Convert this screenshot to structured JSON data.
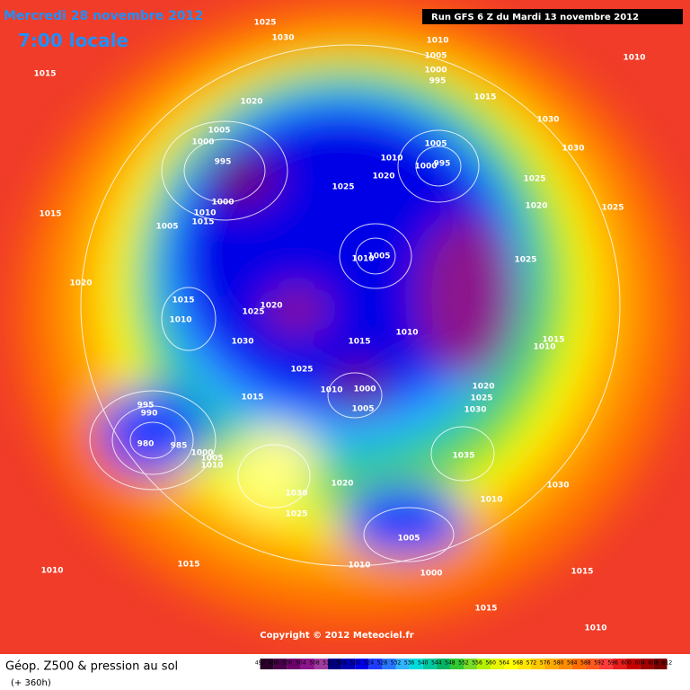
{
  "header": {
    "date": "Mercredi 28 novembre 2012",
    "time": "7:00 locale",
    "run": "Run GFS 6 Z du Mardi 13 novembre 2012"
  },
  "isobar_labels": [
    "1015",
    "1025",
    "1030",
    "1010",
    "1010",
    "1005",
    "1000",
    "995",
    "1015",
    "1020",
    "1030",
    "1005",
    "1000",
    "995",
    "1005",
    "1010",
    "1000",
    "995",
    "1020",
    "1030",
    "1025",
    "1025",
    "1020",
    "1025",
    "1015",
    "1000",
    "1010",
    "1015",
    "1005",
    "1010",
    "1005",
    "1025",
    "1020",
    "1015",
    "1020",
    "1025",
    "1010",
    "1030",
    "1015",
    "1010",
    "1015",
    "1010",
    "1025",
    "1010",
    "1000",
    "1020",
    "1025",
    "1030",
    "1005",
    "1015",
    "995",
    "990",
    "980",
    "985",
    "1000",
    "1005",
    "1010",
    "1035",
    "1020",
    "1030",
    "1010",
    "1030",
    "1025",
    "1005",
    "1010",
    "1000",
    "1010",
    "1015",
    "1015",
    "1015",
    "1010"
  ],
  "copyright": "Copyright © 2012 Meteociel.fr",
  "legend": {
    "title": "Géop. Z500 & pression au sol",
    "subtitle": "(+ 360h)",
    "ticks": [
      492,
      496,
      500,
      504,
      508,
      512,
      516,
      520,
      524,
      528,
      532,
      536,
      540,
      544,
      548,
      552,
      556,
      560,
      564,
      568,
      572,
      576,
      580,
      584,
      588,
      592,
      596,
      600,
      604,
      608,
      612
    ],
    "colors": [
      "#2a002a",
      "#4b004b",
      "#6e006e",
      "#8c148c",
      "#a03ca0",
      "#000080",
      "#0000b4",
      "#0000e6",
      "#1e3cff",
      "#2878ff",
      "#32b4ff",
      "#00dcdc",
      "#00c8a0",
      "#00b464",
      "#32c832",
      "#78dc28",
      "#b4f000",
      "#e6f500",
      "#ffff00",
      "#ffe600",
      "#ffc800",
      "#ffaa00",
      "#ff8c00",
      "#ff6e00",
      "#ff5a1e",
      "#ff3c3c",
      "#e61e1e",
      "#c80000",
      "#a00000",
      "#780000"
    ]
  }
}
